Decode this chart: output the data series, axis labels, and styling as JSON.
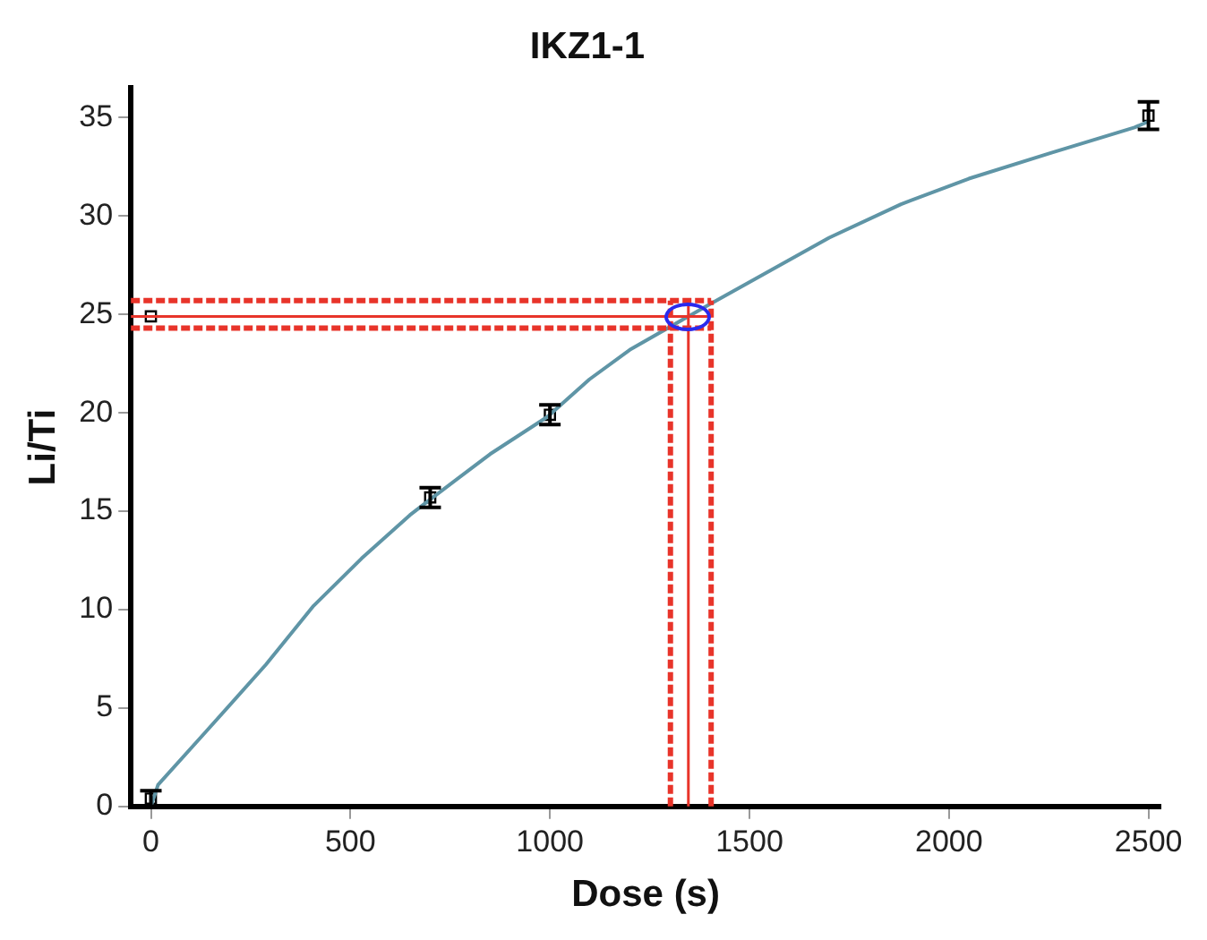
{
  "chart_data": {
    "type": "scatter",
    "title": "IKZ1-1",
    "xlabel": "Dose (s)",
    "ylabel": "Li/Ti",
    "xlim": [
      -50,
      2530
    ],
    "xticks": [
      0,
      500,
      1000,
      1500,
      2000,
      2500
    ],
    "ylim": [
      0,
      36.5
    ],
    "yticks": [
      0,
      5,
      10,
      15,
      20,
      25,
      30,
      35
    ],
    "grid": false,
    "legend": false,
    "series": [
      {
        "type": "line",
        "color": "#5f95a6",
        "marker": "none",
        "x": [
          0,
          18,
          138,
          288,
          408,
          528,
          649,
          700,
          850,
          994,
          1099,
          1200,
          1347,
          1399,
          1550,
          1700,
          1880,
          2050,
          2255,
          2465,
          2500
        ],
        "values": [
          0,
          1.1,
          3.8,
          7.2,
          10.2,
          12.6,
          14.8,
          15.6,
          17.9,
          19.8,
          21.7,
          23.2,
          24.9,
          25.5,
          27.2,
          28.9,
          30.6,
          31.9,
          33.2,
          34.5,
          34.8
        ]
      },
      {
        "type": "scatter",
        "color": "#000000",
        "marker": "square",
        "x": [
          0,
          700,
          1000,
          2500
        ],
        "values": [
          0.4,
          15.7,
          19.9,
          35.1
        ],
        "errors": [
          0.4,
          0.5,
          0.5,
          0.7
        ]
      },
      {
        "type": "scatter",
        "color": "#000000",
        "marker": "square",
        "x": [
          0
        ],
        "values": [
          24.9
        ]
      }
    ],
    "ref_lines": [
      {
        "axis": "y",
        "value": 24.9,
        "color": "#e8342a",
        "line_style": "solid"
      },
      {
        "axis": "x",
        "value": 1347,
        "color": "#e8342a",
        "line_style": "solid"
      },
      {
        "axis": "y",
        "value": 24.3,
        "color": "#e8342a",
        "line_style": "dashed"
      },
      {
        "axis": "y",
        "value": 25.7,
        "color": "#e8342a",
        "line_style": "dashed"
      },
      {
        "axis": "x",
        "value": 1302,
        "color": "#e8342a",
        "line_style": "dashed"
      },
      {
        "axis": "x",
        "value": 1404,
        "color": "#e8342a",
        "line_style": "dashed"
      }
    ]
  }
}
